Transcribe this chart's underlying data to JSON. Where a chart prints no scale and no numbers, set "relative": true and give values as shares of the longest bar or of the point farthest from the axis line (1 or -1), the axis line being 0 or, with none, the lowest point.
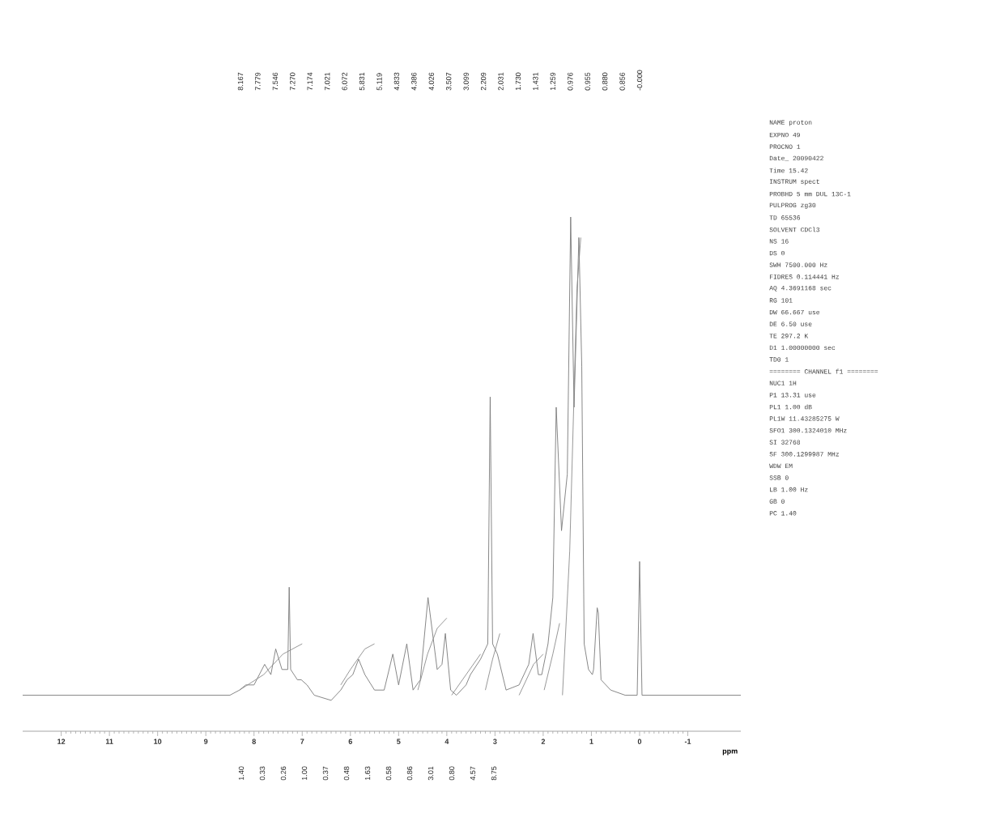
{
  "chart_data": {
    "type": "line",
    "xlabel": "ppm",
    "relative": true,
    "xlim": [
      12.8,
      -2.1
    ],
    "xticks": [
      12,
      11,
      10,
      9,
      8,
      7,
      6,
      5,
      4,
      3,
      2,
      1,
      0,
      -1
    ],
    "series": [
      {
        "color": "#7a7a7a",
        "x": [
          12.8,
          8.5,
          8.3,
          8.17,
          8.0,
          7.78,
          7.65,
          7.55,
          7.42,
          7.3,
          7.27,
          7.24,
          7.17,
          7.1,
          7.02,
          6.9,
          6.75,
          6.4,
          6.2,
          6.07,
          5.95,
          5.83,
          5.7,
          5.5,
          5.3,
          5.12,
          5.0,
          4.83,
          4.7,
          4.55,
          4.39,
          4.2,
          4.1,
          4.03,
          3.92,
          3.8,
          3.6,
          3.51,
          3.3,
          3.15,
          3.1,
          3.05,
          2.95,
          2.77,
          2.5,
          2.3,
          2.21,
          2.1,
          2.03,
          1.9,
          1.8,
          1.73,
          1.62,
          1.5,
          1.43,
          1.36,
          1.26,
          1.2,
          1.15,
          1.06,
          0.98,
          0.955,
          0.88,
          0.856,
          0.8,
          0.6,
          0.3,
          0.05,
          0,
          -0.05,
          -2.1
        ],
        "values": [
          0.07,
          0.07,
          0.08,
          0.09,
          0.09,
          0.13,
          0.11,
          0.16,
          0.12,
          0.12,
          0.28,
          0.12,
          0.11,
          0.1,
          0.1,
          0.09,
          0.07,
          0.06,
          0.08,
          0.1,
          0.11,
          0.14,
          0.11,
          0.08,
          0.08,
          0.15,
          0.09,
          0.17,
          0.08,
          0.1,
          0.26,
          0.12,
          0.13,
          0.19,
          0.08,
          0.07,
          0.09,
          0.11,
          0.14,
          0.17,
          0.65,
          0.17,
          0.15,
          0.08,
          0.09,
          0.13,
          0.19,
          0.11,
          0.11,
          0.17,
          0.26,
          0.63,
          0.39,
          0.5,
          1.0,
          0.63,
          0.96,
          0.71,
          0.17,
          0.12,
          0.11,
          0.12,
          0.24,
          0.23,
          0.1,
          0.08,
          0.07,
          0.07,
          0.33,
          0.07,
          0.07
        ]
      },
      {
        "color": "#8c8c8c",
        "x": [
          8.3,
          7.8,
          7.4,
          7.0
        ],
        "values": [
          0.08,
          0.11,
          0.15,
          0.17
        ]
      },
      {
        "color": "#8c8c8c",
        "x": [
          6.2,
          6.0,
          5.7,
          5.5
        ],
        "values": [
          0.09,
          0.12,
          0.16,
          0.17
        ]
      },
      {
        "color": "#8c8c8c",
        "x": [
          4.6,
          4.4,
          4.2,
          4.0
        ],
        "values": [
          0.08,
          0.15,
          0.2,
          0.22
        ]
      },
      {
        "color": "#8c8c8c",
        "x": [
          3.9,
          3.6,
          3.3
        ],
        "values": [
          0.07,
          0.11,
          0.15
        ]
      },
      {
        "color": "#8c8c8c",
        "x": [
          3.2,
          3.05,
          2.9
        ],
        "values": [
          0.08,
          0.14,
          0.19
        ]
      },
      {
        "color": "#8c8c8c",
        "x": [
          2.5,
          2.2,
          2.0
        ],
        "values": [
          0.07,
          0.13,
          0.15
        ]
      },
      {
        "color": "#8c8c8c",
        "x": [
          1.98,
          1.8,
          1.66
        ],
        "values": [
          0.08,
          0.15,
          0.21
        ]
      },
      {
        "color": "#8c8c8c",
        "x": [
          1.6,
          1.45,
          1.3,
          1.22
        ],
        "values": [
          0.07,
          0.35,
          0.86,
          0.96
        ]
      }
    ],
    "annotations": [
      "8.167",
      "7.779",
      "7.546",
      "7.270",
      "7.174",
      "7.021",
      "6.072",
      "5.831",
      "5.119",
      "4.833",
      "4.386",
      "4.026",
      "3.507",
      "3.099",
      "2.209",
      "2.031",
      "1.730",
      "1.431",
      "1.259",
      "0.976",
      "0.955",
      "0.880",
      "0.856",
      "-0.000",
      "1.40",
      "0.33",
      "0.26",
      "1.00",
      "0.37",
      "0.48",
      "1.63",
      "0.58",
      "0.86",
      "3.01",
      "0.80",
      "4.57",
      "8.75",
      "NAME proton",
      "EXPNO 49",
      "PROCNO 1",
      "Date_ 20090422",
      "Time 15.42",
      "INSTRUM spect",
      "PROBHD 5 mm DUL 13C-1",
      "PULPROG zg30",
      "TD 65536",
      "SOLVENT CDCl3",
      "NS 16",
      "DS 0",
      "SWH 7500.000 Hz",
      "FIDRES 0.114441 Hz",
      "AQ 4.3691168 sec",
      "RG 101",
      "DW 66.667 use",
      "DE 6.50 use",
      "TE 297.2 K",
      "D1 1.00000000 sec",
      "TD0 1",
      "======== CHANNEL f1 ========",
      "NUC1 1H",
      "P1 13.31 use",
      "PL1 1.00 dB",
      "PL1W 11.43285275 W",
      "SFO1 300.1324010 MHz",
      "SI 32768",
      "SF 300.1299987 MHz",
      "WDW EM",
      "SSB 0",
      "LB 1.00 Hz",
      "GB 0",
      "PC 1.40"
    ]
  }
}
